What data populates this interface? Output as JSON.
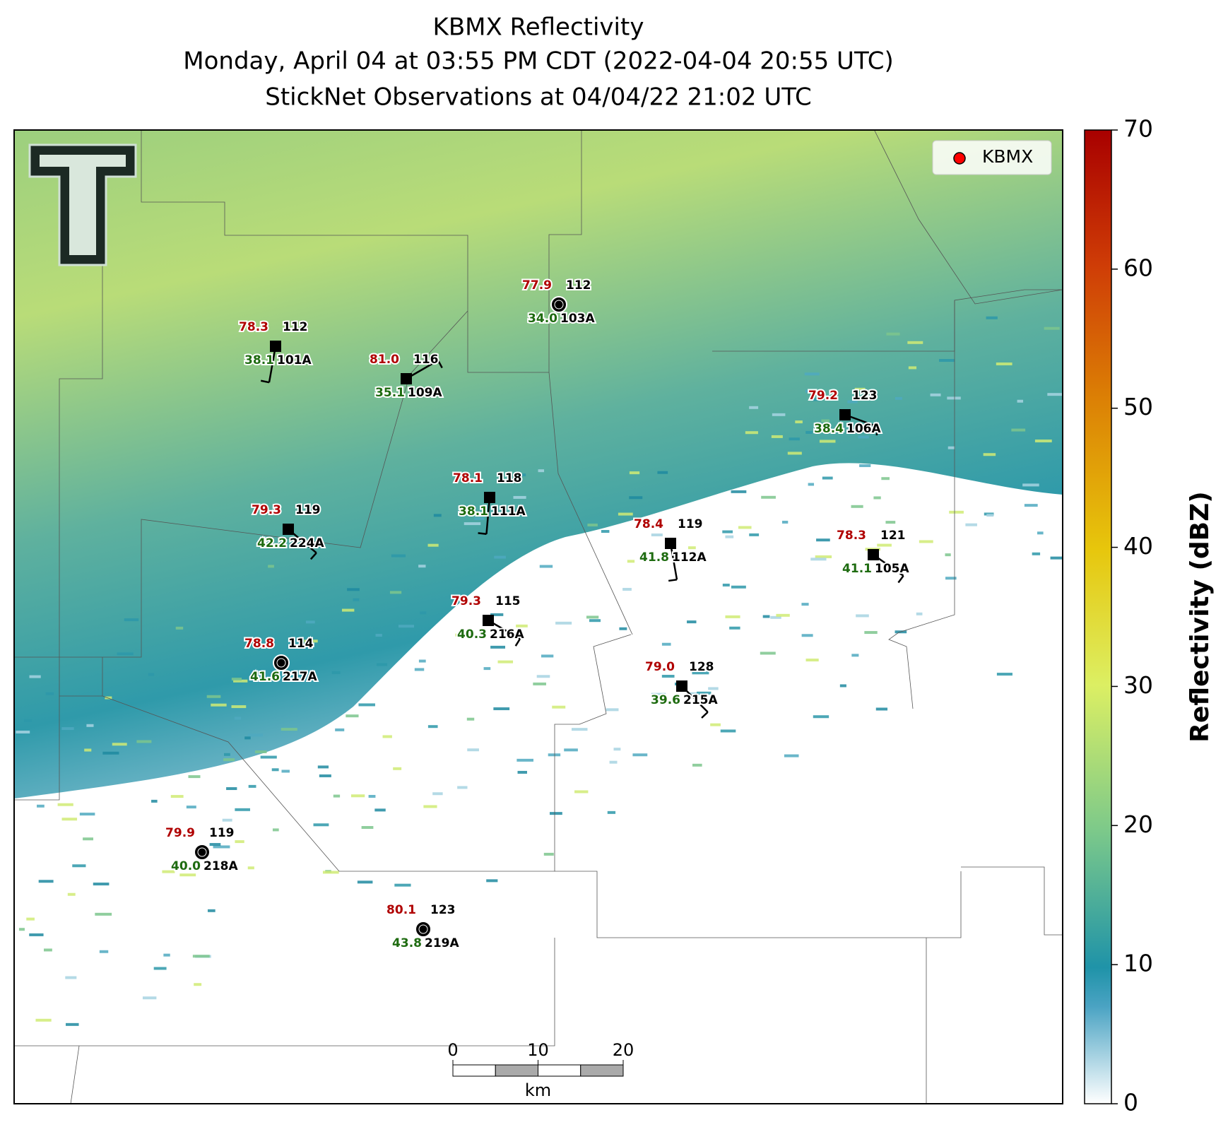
{
  "header": {
    "title": "KBMX Reflectivity",
    "subtitle": "Monday, April 04 at 03:55 PM CDT (2022-04-04 20:55 UTC)",
    "subtitle2": "StickNet Observations at 04/04/22 21:02 UTC"
  },
  "legend": {
    "label": "KBMX",
    "color": "#ff0000"
  },
  "colorbar": {
    "label": "Reflectivity (dBZ)",
    "lim": [
      0,
      70
    ],
    "ticks": [
      0,
      10,
      20,
      30,
      40,
      50,
      60,
      70
    ]
  },
  "stations": [
    {
      "id": "101A",
      "temperature": "78.3",
      "value": 112,
      "dewpoint": "38.1",
      "marker": "square"
    },
    {
      "id": "109A",
      "temperature": "81.0",
      "value": 116,
      "dewpoint": "35.1",
      "marker": "square"
    },
    {
      "id": "103A",
      "temperature": "77.9",
      "value": 112,
      "dewpoint": "34.0",
      "marker": "circle"
    },
    {
      "id": "106A",
      "temperature": "79.2",
      "value": 123,
      "dewpoint": "38.4",
      "marker": "square"
    },
    {
      "id": "111A",
      "temperature": "78.1",
      "value": 118,
      "dewpoint": "38.1",
      "marker": "square"
    },
    {
      "id": "224A",
      "temperature": "79.3",
      "value": 119,
      "dewpoint": "42.2",
      "marker": "square"
    },
    {
      "id": "112A",
      "temperature": "78.4",
      "value": 119,
      "dewpoint": "41.8",
      "marker": "square"
    },
    {
      "id": "105A",
      "temperature": "78.3",
      "value": 121,
      "dewpoint": "41.1",
      "marker": "square"
    },
    {
      "id": "216A",
      "temperature": "79.3",
      "value": 115,
      "dewpoint": "40.3",
      "marker": "square"
    },
    {
      "id": "217A",
      "temperature": "78.8",
      "value": 114,
      "dewpoint": "41.6",
      "marker": "circle"
    },
    {
      "id": "215A",
      "temperature": "79.0",
      "value": 128,
      "dewpoint": "39.6",
      "marker": "square"
    },
    {
      "id": "218A",
      "temperature": "79.9",
      "value": 119,
      "dewpoint": "40.0",
      "marker": "circle"
    },
    {
      "id": "219A",
      "temperature": "80.1",
      "value": 123,
      "dewpoint": "43.8",
      "marker": "circle"
    }
  ],
  "scale_bar": {
    "ticks": [
      0,
      10,
      20
    ],
    "unit": "km"
  }
}
